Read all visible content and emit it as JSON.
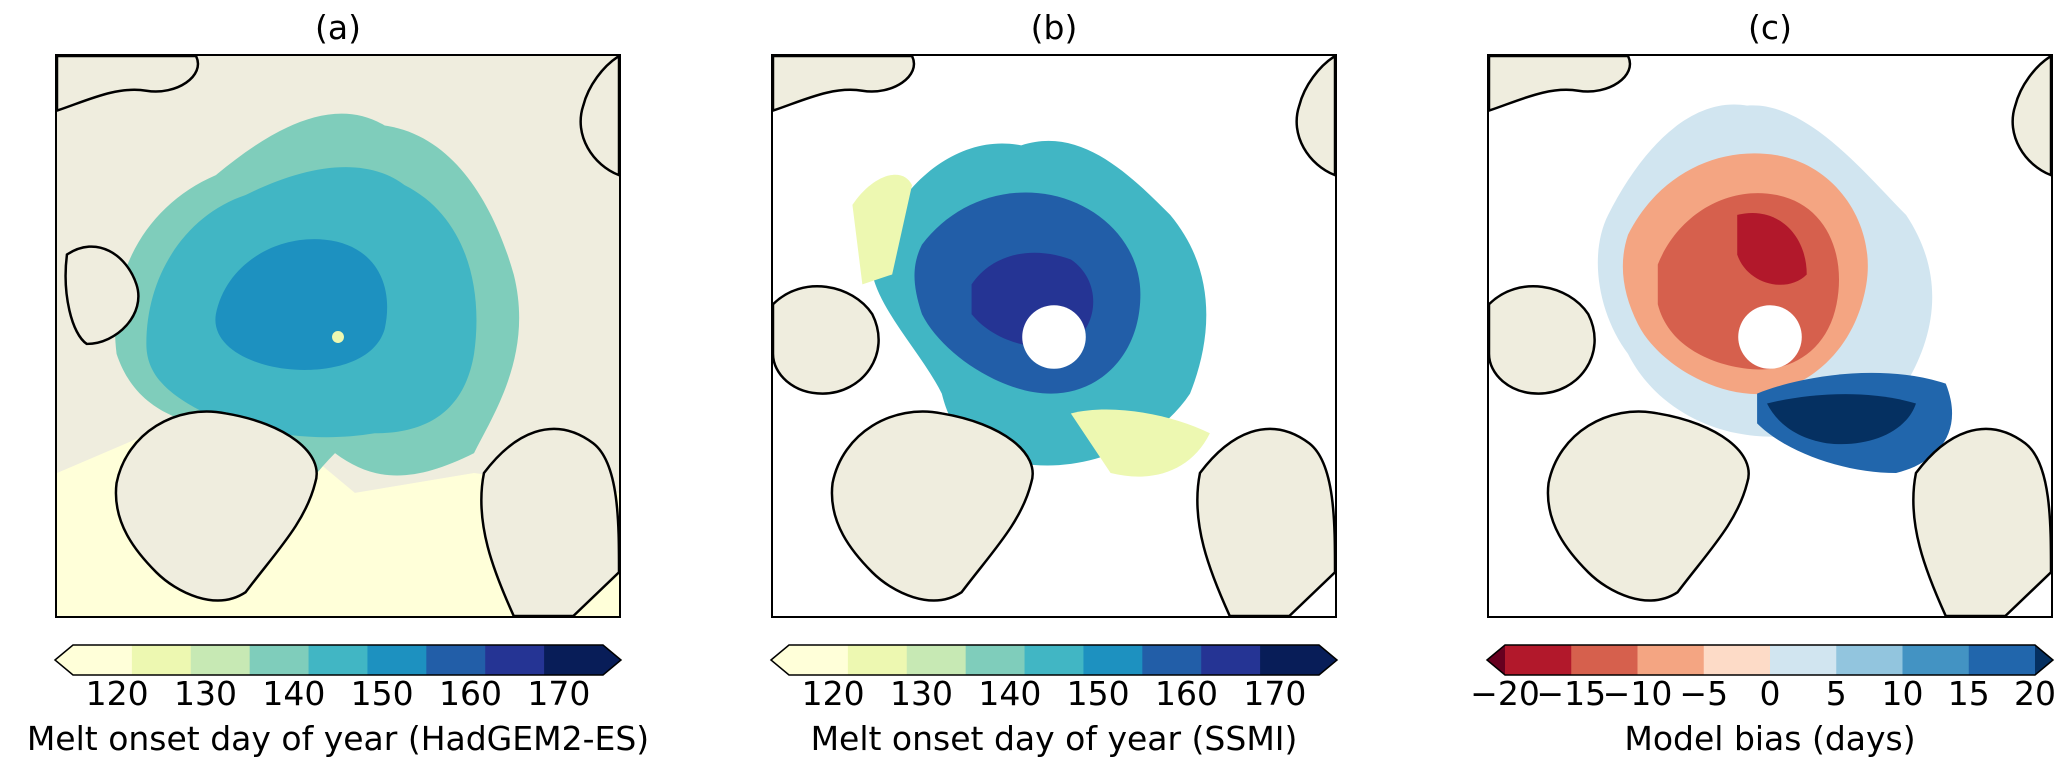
{
  "panels": [
    {
      "title": "(a)",
      "label": "Melt onset day of year (HadGEM2-ES)",
      "ticks": [
        "120",
        "130",
        "140",
        "150",
        "160",
        "170"
      ],
      "tick_values": [
        120,
        130,
        140,
        150,
        160,
        170
      ],
      "range": [
        115,
        175
      ],
      "colors": [
        "#ffffd9",
        "#edf8b1",
        "#c7e9b4",
        "#7fcdbb",
        "#41b6c4",
        "#1d91c0",
        "#225ea8",
        "#253494",
        "#081d58"
      ]
    },
    {
      "title": "(b)",
      "label": "Melt onset day of year (SSMI)",
      "ticks": [
        "120",
        "130",
        "140",
        "150",
        "160",
        "170"
      ],
      "tick_values": [
        120,
        130,
        140,
        150,
        160,
        170
      ],
      "range": [
        115,
        175
      ],
      "colors": [
        "#ffffd9",
        "#edf8b1",
        "#c7e9b4",
        "#7fcdbb",
        "#41b6c4",
        "#1d91c0",
        "#225ea8",
        "#253494",
        "#081d58"
      ]
    },
    {
      "title": "(c)",
      "label": "Model bias (days)",
      "ticks": [
        "−20",
        "−15",
        "−10",
        "−5",
        "0",
        "5",
        "10",
        "15",
        "20"
      ],
      "tick_values": [
        -20,
        -15,
        -10,
        -5,
        0,
        5,
        10,
        15,
        20
      ],
      "range": [
        -20,
        20
      ],
      "colors": [
        "#b2182b",
        "#d6604d",
        "#f4a582",
        "#fddbc7",
        "#d1e5f0",
        "#92c5de",
        "#4393c3",
        "#2166ac"
      ],
      "extend_colors": [
        "#67001f",
        "#053061"
      ]
    }
  ],
  "land_color": "#efedde",
  "coast_color": "#000000"
}
